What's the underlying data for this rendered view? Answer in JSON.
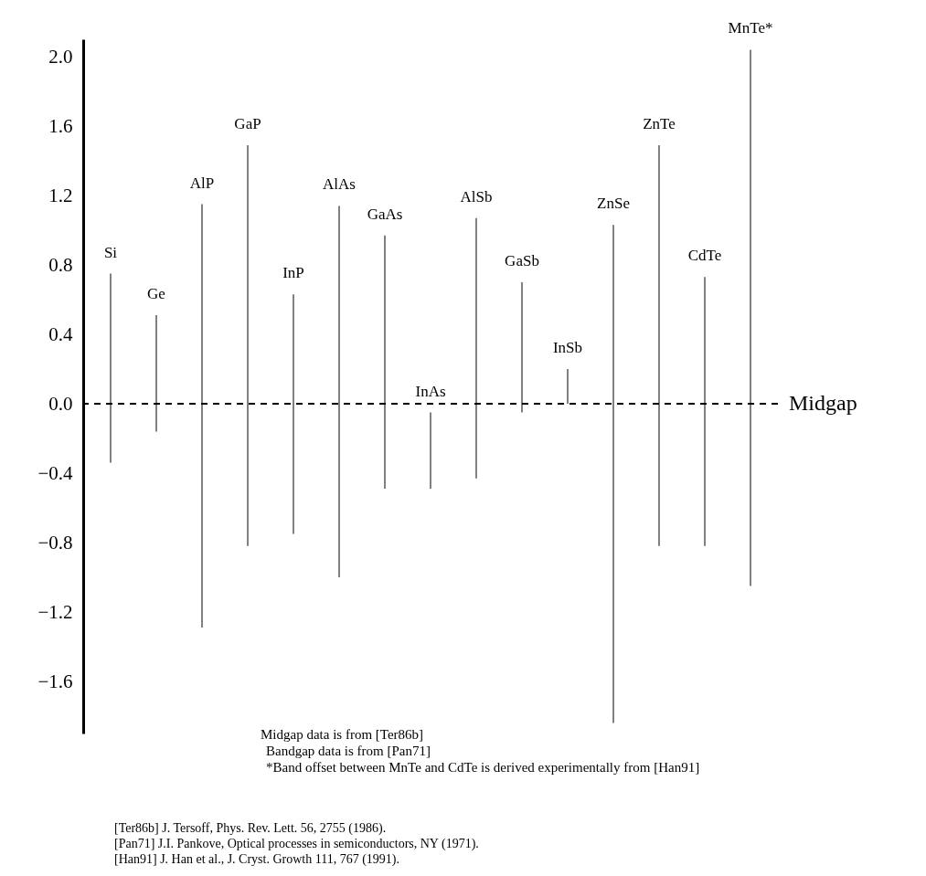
{
  "chart_data": {
    "type": "bar",
    "categories": [
      "Si",
      "Ge",
      "AlP",
      "GaP",
      "InP",
      "AlAs",
      "GaAs",
      "InAs",
      "AlSb",
      "GaSb",
      "InSb",
      "ZnSe",
      "ZnTe",
      "CdTe",
      "MnTe*"
    ],
    "base": [
      -0.34,
      -0.16,
      -1.29,
      -0.82,
      -0.75,
      -1.0,
      -0.49,
      -0.49,
      -0.43,
      -0.05,
      0.0,
      -1.84,
      -0.82,
      -0.82,
      -1.05
    ],
    "values": [
      1.09,
      0.67,
      2.44,
      2.31,
      1.38,
      2.14,
      1.46,
      0.44,
      1.5,
      0.75,
      0.2,
      2.87,
      2.31,
      1.55,
      3.09
    ],
    "color": "#808080",
    "ylim": [
      -1.9,
      2.1
    ],
    "yticks": [
      {
        "value": 2.0,
        "label": "2.0"
      },
      1.6,
      1.2,
      0.8,
      0.4,
      {
        "value": 0,
        "label": "0.0"
      },
      -0.4,
      -0.8,
      -1.2,
      -1.6
    ],
    "grid": false,
    "ref_lines": [
      {
        "axis": "y",
        "value": 0,
        "label": "Midgap",
        "color": "#000000",
        "line_style": "dashed"
      }
    ],
    "annotations": [
      "Midgap data is from [Ter86b]",
      "Bandgap data is from [Pan71]",
      "*Band offset between MnTe and CdTe is derived experimentally from [Han91]",
      "[Ter86b] J. Tersoff, Phys. Rev. Lett. 56, 2755 (1986).",
      "[Pan71] J.I. Pankove, Optical processes in semiconductors, NY (1971).",
      "[Han91] J. Han et al., J. Cryst. Growth 111, 767 (1991)."
    ]
  }
}
